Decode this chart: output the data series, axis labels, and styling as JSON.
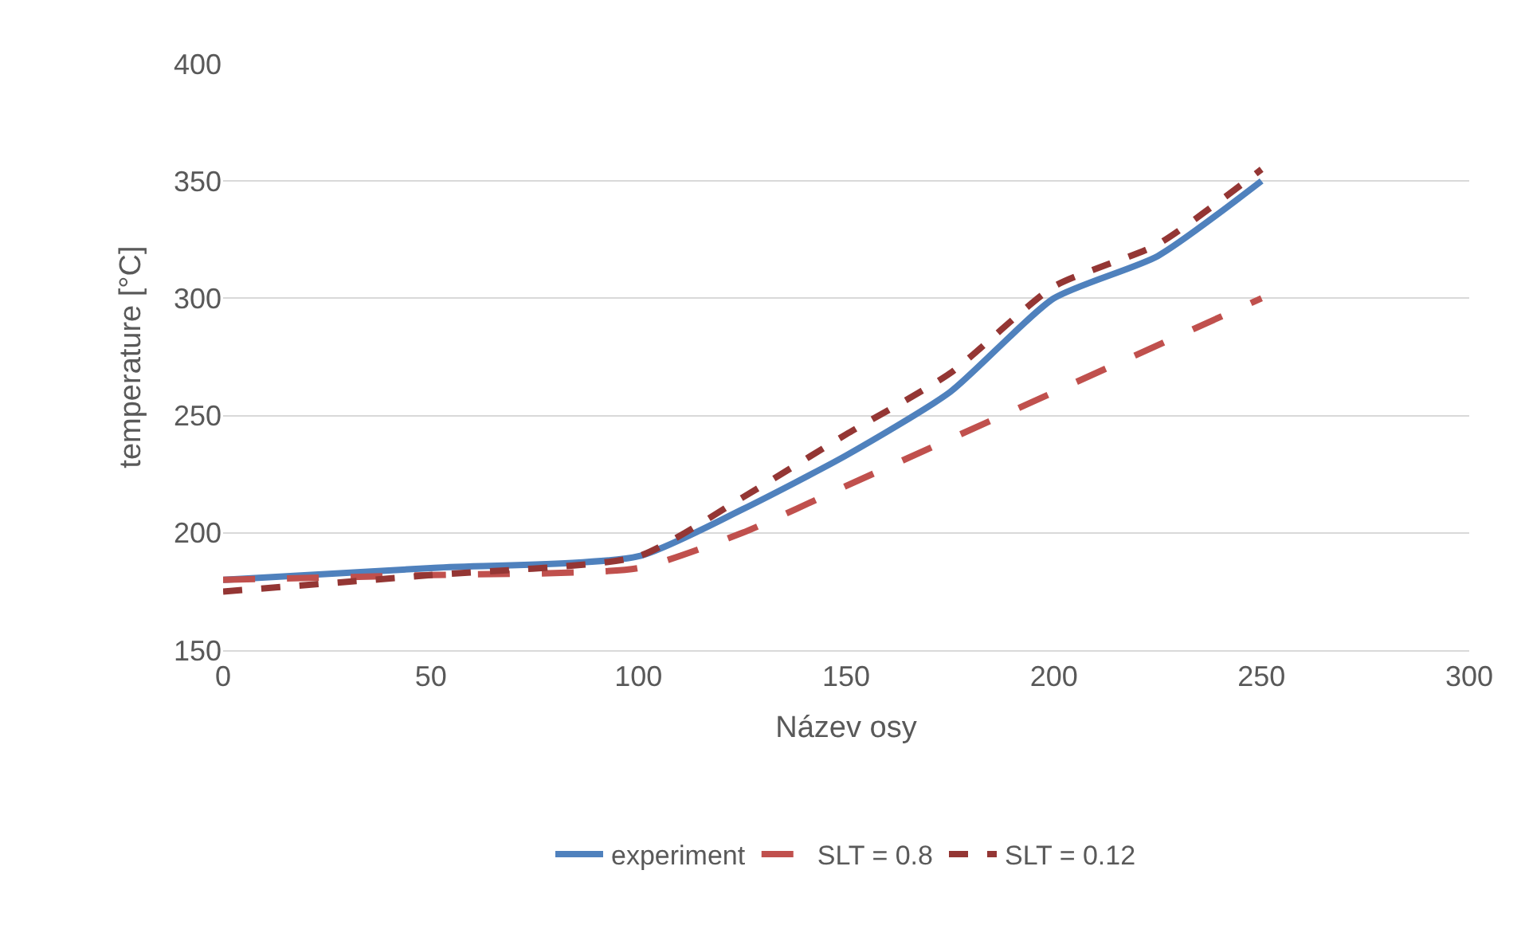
{
  "chart_data": {
    "type": "line",
    "xlabel": "Název osy",
    "ylabel": "temperature [°C]",
    "xlim": [
      0,
      300
    ],
    "xticks": [
      0,
      50,
      100,
      150,
      200,
      250,
      300
    ],
    "ylim": [
      150,
      400
    ],
    "yticks": [
      150,
      200,
      250,
      300,
      350,
      400
    ],
    "grid": "y",
    "legend": "bottom",
    "marker": "none",
    "series": [
      {
        "name": "experiment",
        "color": "#4f81bd",
        "line_style": "solid",
        "x": [
          0,
          50,
          100,
          125,
          150,
          175,
          200,
          225,
          250
        ],
        "values": [
          180,
          185,
          190,
          210,
          233,
          260,
          300,
          318,
          350
        ]
      },
      {
        "name": "SLT = 0.8",
        "color": "#c0504d",
        "line_style": "longdash",
        "x": [
          0,
          50,
          100,
          125,
          150,
          200,
          250
        ],
        "values": [
          180,
          182,
          185,
          200,
          220,
          260,
          300
        ]
      },
      {
        "name": "SLT = 0.12",
        "color": "#943634",
        "line_style": "dashed",
        "x": [
          0,
          50,
          100,
          125,
          150,
          175,
          200,
          225,
          250
        ],
        "values": [
          175,
          182,
          190,
          215,
          242,
          268,
          305,
          323,
          355
        ]
      }
    ]
  }
}
